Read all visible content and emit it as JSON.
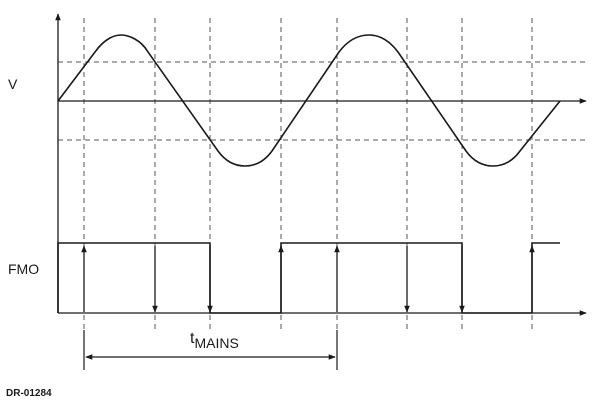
{
  "labels": {
    "voltage": "V",
    "fmo": "FMO",
    "t_main": "t",
    "t_sub": "MAINS",
    "ref_id": "DR-01284"
  }
}
